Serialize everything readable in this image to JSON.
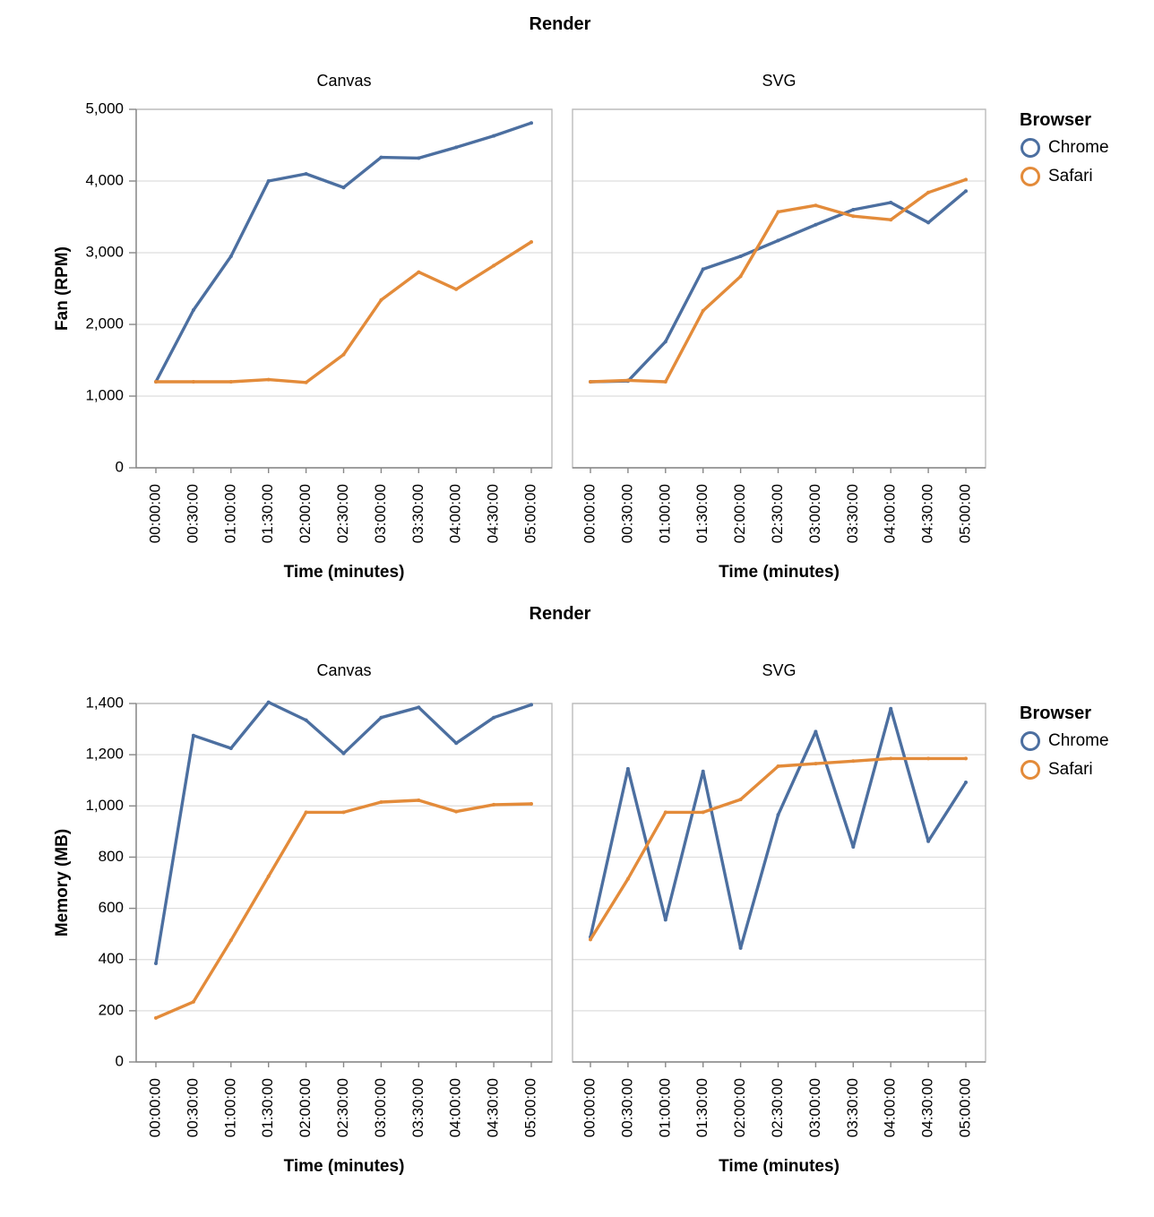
{
  "colors": {
    "Chrome": "#4c6fa0",
    "Safari": "#e38b3a"
  },
  "chart_data": [
    {
      "type": "line",
      "title": "Render",
      "xlabel": "Time (minutes)",
      "ylabel": "Fan (RPM)",
      "ylim": [
        0,
        5000
      ],
      "yticks": [
        0,
        1000,
        2000,
        3000,
        4000,
        5000
      ],
      "ytick_labels": [
        "0",
        "1,000",
        "2,000",
        "3,000",
        "4,000",
        "5,000"
      ],
      "x": [
        "00:00:00",
        "00:30:00",
        "01:00:00",
        "01:30:00",
        "02:00:00",
        "02:30:00",
        "03:00:00",
        "03:30:00",
        "04:00:00",
        "04:30:00",
        "05:00:00"
      ],
      "legend": {
        "title": "Browser",
        "entries": [
          "Chrome",
          "Safari"
        ],
        "position": "right"
      },
      "facets": [
        {
          "title": "Canvas",
          "series": [
            {
              "name": "Chrome",
              "values": [
                1200,
                2200,
                2950,
                4000,
                4100,
                3910,
                4330,
                4320,
                4470,
                4630,
                4810
              ]
            },
            {
              "name": "Safari",
              "values": [
                1200,
                1200,
                1200,
                1230,
                1190,
                1580,
                2340,
                2730,
                2490,
                2820,
                3150
              ]
            }
          ]
        },
        {
          "title": "SVG",
          "series": [
            {
              "name": "Chrome",
              "values": [
                1200,
                1210,
                1760,
                2770,
                2950,
                3170,
                3390,
                3600,
                3700,
                3420,
                3860
              ]
            },
            {
              "name": "Safari",
              "values": [
                1200,
                1220,
                1200,
                2190,
                2670,
                3570,
                3660,
                3510,
                3460,
                3840,
                4020
              ]
            }
          ]
        }
      ]
    },
    {
      "type": "line",
      "title": "Render",
      "xlabel": "Time (minutes)",
      "ylabel": "Memory (MB)",
      "ylim": [
        0,
        1400
      ],
      "yticks": [
        0,
        200,
        400,
        600,
        800,
        1000,
        1200,
        1400
      ],
      "ytick_labels": [
        "0",
        "200",
        "400",
        "600",
        "800",
        "1,000",
        "1,200",
        "1,400"
      ],
      "x": [
        "00:00:00",
        "00:30:00",
        "01:00:00",
        "01:30:00",
        "02:00:00",
        "02:30:00",
        "03:00:00",
        "03:30:00",
        "04:00:00",
        "04:30:00",
        "05:00:00"
      ],
      "legend": {
        "title": "Browser",
        "entries": [
          "Chrome",
          "Safari"
        ],
        "position": "right"
      },
      "facets": [
        {
          "title": "Canvas",
          "series": [
            {
              "name": "Chrome",
              "values": [
                385,
                1275,
                1225,
                1405,
                1335,
                1205,
                1345,
                1385,
                1245,
                1345,
                1395
              ]
            },
            {
              "name": "Safari",
              "values": [
                172,
                235,
                475,
                725,
                975,
                975,
                1015,
                1022,
                978,
                1005,
                1008
              ]
            }
          ]
        },
        {
          "title": "SVG",
          "series": [
            {
              "name": "Chrome",
              "values": [
                488,
                1145,
                555,
                1135,
                445,
                965,
                1290,
                840,
                1380,
                862,
                1092
              ]
            },
            {
              "name": "Safari",
              "values": [
                478,
                715,
                975,
                975,
                1025,
                1155,
                1165,
                1175,
                1185,
                1185,
                1185
              ]
            }
          ]
        }
      ]
    }
  ]
}
